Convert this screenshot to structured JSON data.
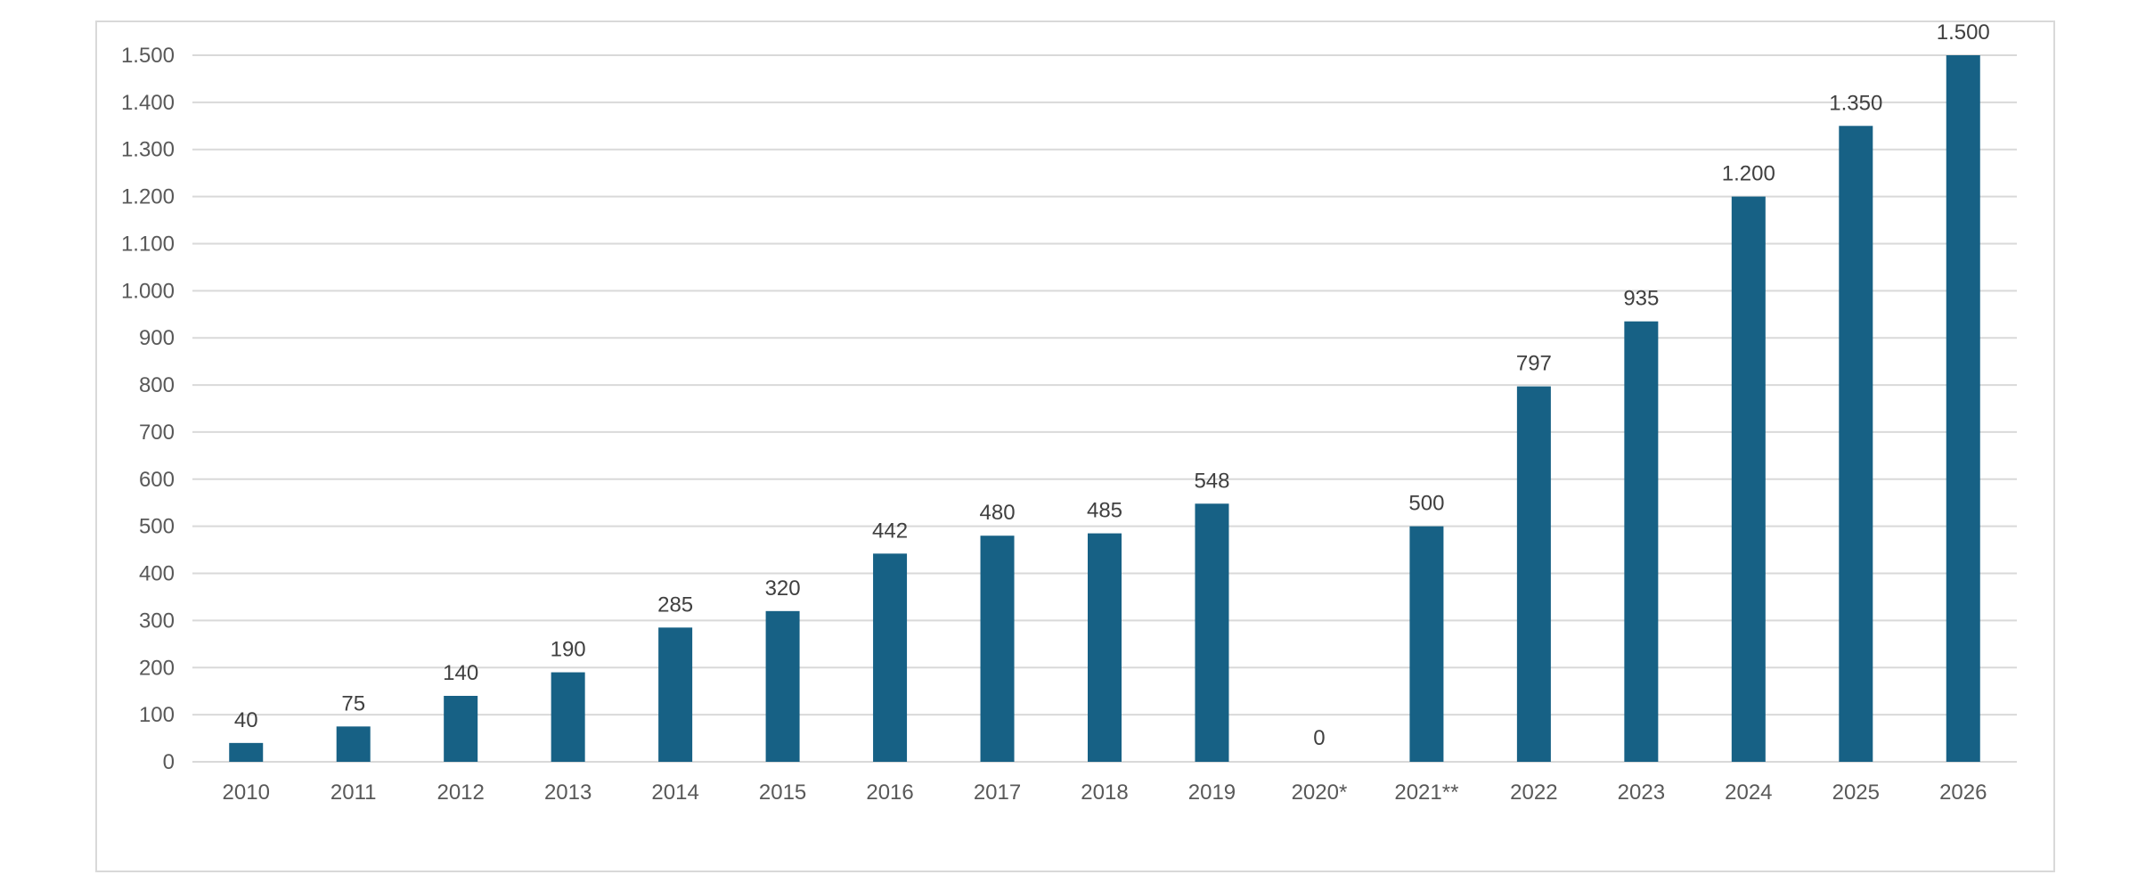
{
  "chart_data": {
    "type": "bar",
    "categories": [
      "2010",
      "2011",
      "2012",
      "2013",
      "2014",
      "2015",
      "2016",
      "2017",
      "2018",
      "2019",
      "2020*",
      "2021**",
      "2022",
      "2023",
      "2024",
      "2025",
      "2026"
    ],
    "values": [
      40,
      75,
      140,
      190,
      285,
      320,
      442,
      480,
      485,
      548,
      0,
      500,
      797,
      935,
      1200,
      1350,
      1500
    ],
    "value_labels": [
      "40",
      "75",
      "140",
      "190",
      "285",
      "320",
      "442",
      "480",
      "485",
      "548",
      "0",
      "500",
      "797",
      "935",
      "1.200",
      "1.350",
      "1.500"
    ],
    "ylim": [
      0,
      1500
    ],
    "y_ticks": [
      0,
      100,
      200,
      300,
      400,
      500,
      600,
      700,
      800,
      900,
      1000,
      1100,
      1200,
      1300,
      1400,
      1500
    ],
    "y_tick_labels": [
      "0",
      "100",
      "200",
      "300",
      "400",
      "500",
      "600",
      "700",
      "800",
      "900",
      "1.000",
      "1.100",
      "1.200",
      "1.300",
      "1.400",
      "1.500"
    ],
    "grid": true,
    "legend": "none",
    "bar_color": "#176185"
  }
}
